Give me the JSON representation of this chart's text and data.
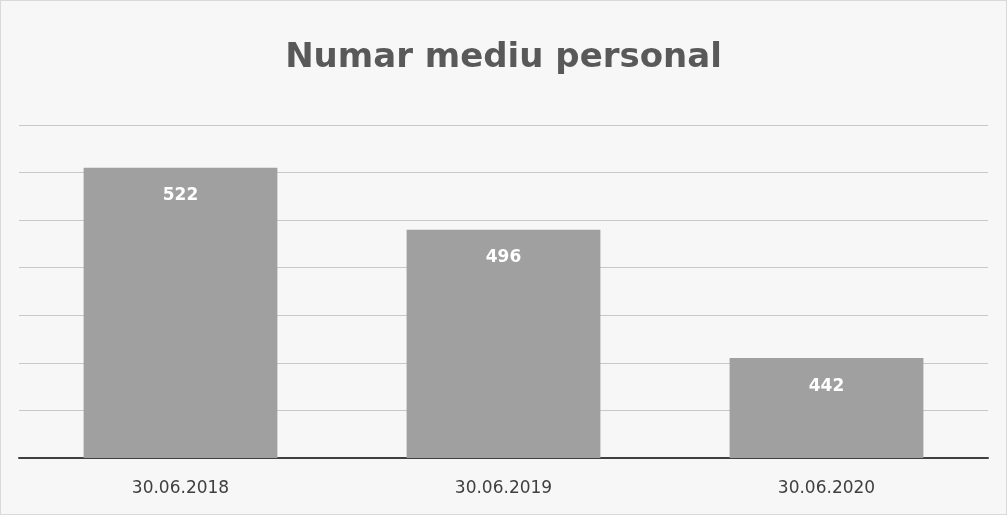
{
  "chart_data": {
    "type": "bar",
    "title": "Numar mediu personal",
    "categories": [
      "30.06.2018",
      "30.06.2019",
      "30.06.2020"
    ],
    "values": [
      522,
      496,
      442
    ],
    "color": "#a0a0a0",
    "ylim": [
      400,
      540
    ],
    "yticks": [
      {
        "value": 400,
        "label": null
      },
      {
        "value": 420,
        "label": null
      },
      {
        "value": 440,
        "label": null
      },
      {
        "value": 460,
        "label": null
      },
      {
        "value": 480,
        "label": null
      },
      {
        "value": 500,
        "label": null
      },
      {
        "value": 520,
        "label": null
      },
      {
        "value": 540,
        "label": null
      }
    ],
    "tick_labels": "x",
    "grid": "y",
    "data_labels": true
  }
}
